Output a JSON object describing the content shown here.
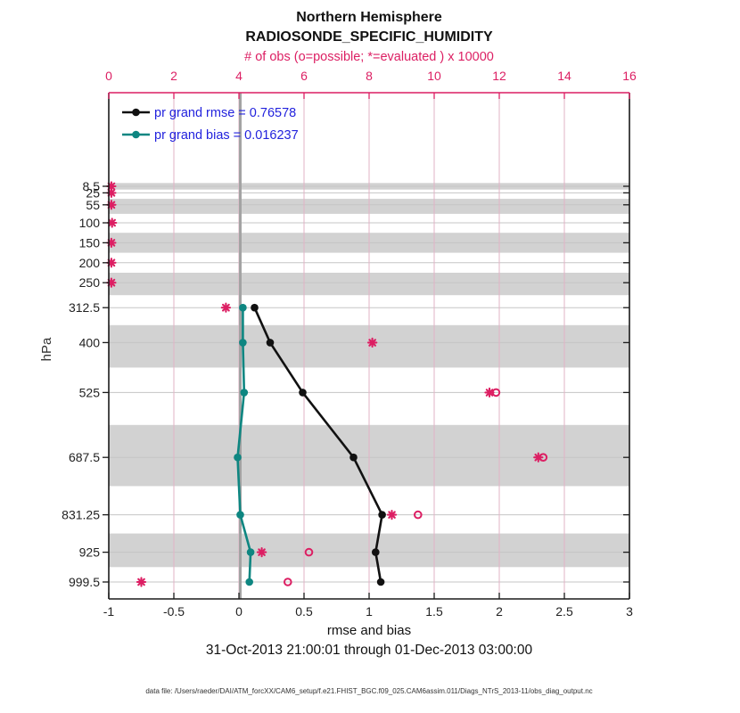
{
  "title": {
    "line1": "Northern Hemisphere",
    "line2": "RADIOSONDE_SPECIFIC_HUMIDITY"
  },
  "top_axis": {
    "label": "# of obs (o=possible; *=evaluated ) x 10000",
    "ticks": [
      "0",
      "2",
      "4",
      "6",
      "8",
      "10",
      "12",
      "14",
      "16"
    ],
    "range": [
      0,
      16
    ]
  },
  "bottom_axis": {
    "label": "rmse and bias",
    "ticks": [
      "-1",
      "-0.5",
      "0",
      "0.5",
      "1",
      "1.5",
      "2",
      "2.5",
      "3"
    ],
    "range": [
      -1,
      3
    ]
  },
  "left_axis": {
    "label": "hPa",
    "tick_labels": [
      "8.5",
      "25",
      "55",
      "100",
      "150",
      "200",
      "250",
      "312.5",
      "400",
      "525",
      "687.5",
      "831.25",
      "925",
      "999.5"
    ]
  },
  "legend": [
    {
      "label": "pr grand rmse = 0.76578",
      "name": "pr grand rmse",
      "value": 0.76578,
      "color": "#111111"
    },
    {
      "label": "pr grand bias = 0.016237",
      "name": "pr grand bias",
      "value": 0.016237,
      "color": "#0e8681"
    }
  ],
  "date_range": "31-Oct-2013 21:00:01 through 01-Dec-2013 03:00:00",
  "footer": "data file: /Users/raeder/DAI/ATM_forcXX/CAM6_setup/f.e21.FHIST_BGC.f09_025.CAM6assim.011/Diags_NTrS_2013-11/obs_diag_output.nc",
  "colors": {
    "pink": "#dc1f63",
    "grid_v": "#e2b3c6",
    "grid_h": "#c5c5c5",
    "band": "#d2d2d2",
    "zero_line": "#a3a3a3",
    "black_series": "#111111",
    "teal_series": "#0e8681",
    "legend_text": "#2222dd",
    "frame": "#1a1a1a"
  },
  "chart_data": {
    "type": "line",
    "orientation": "vertical-profile",
    "title": "Northern Hemisphere RADIOSONDE_SPECIFIC_HUMIDITY",
    "xlabel_bottom": "rmse and bias",
    "xlabel_top": "# of obs (o=possible; *=evaluated ) x 10000",
    "ylabel": "hPa",
    "x_range_bottom": [
      -1,
      3
    ],
    "x_range_top": [
      0,
      16
    ],
    "pressure_levels": [
      8.5,
      25,
      55,
      100,
      150,
      200,
      250,
      312.5,
      400,
      525,
      687.5,
      831.25,
      925,
      999.5
    ],
    "gray_band_levels": [
      8.5,
      55,
      150,
      250,
      400,
      687.5,
      925
    ],
    "grid": true,
    "legend_position": "top-left-inside",
    "series": [
      {
        "name": "pr grand rmse",
        "axis": "bottom",
        "color": "#111111",
        "levels": [
          312.5,
          400,
          525,
          687.5,
          831.25,
          925,
          999.5
        ],
        "values": [
          0.12,
          0.24,
          0.49,
          0.88,
          1.1,
          1.05,
          1.09
        ]
      },
      {
        "name": "pr grand bias",
        "axis": "bottom",
        "color": "#0e8681",
        "levels": [
          312.5,
          400,
          525,
          687.5,
          831.25,
          925,
          999.5
        ],
        "values": [
          0.03,
          0.03,
          0.04,
          -0.01,
          0.01,
          0.09,
          0.08
        ]
      }
    ],
    "obs_counts_x10000": {
      "axis": "top",
      "color": "#dc1f63",
      "evaluated_star": {
        "levels": [
          8.5,
          25,
          55,
          100,
          150,
          200,
          250,
          312.5,
          400,
          525,
          687.5,
          831.25,
          925,
          999.5
        ],
        "values": [
          0.08,
          0.08,
          0.08,
          0.1,
          0.08,
          0.08,
          0.08,
          3.6,
          8.1,
          11.7,
          13.2,
          8.7,
          4.7,
          1.0
        ]
      },
      "possible_circle": {
        "levels": [
          525,
          687.5,
          831.25,
          925,
          999.5
        ],
        "values": [
          11.9,
          13.35,
          9.5,
          6.15,
          5.5
        ]
      }
    },
    "zero_reference_line": 0
  }
}
